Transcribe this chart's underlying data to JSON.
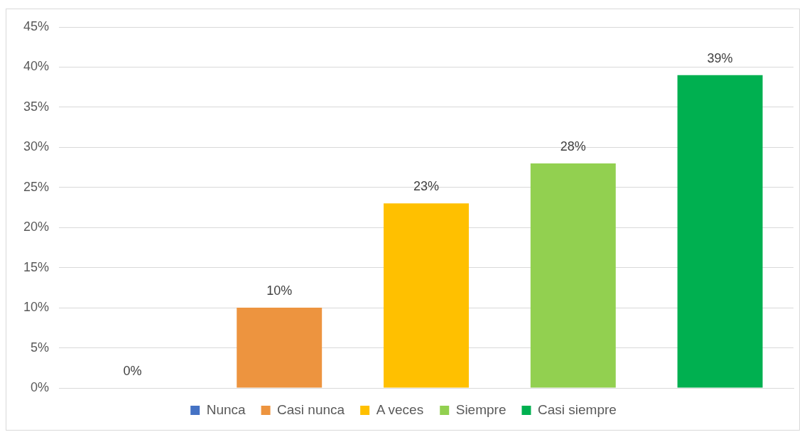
{
  "chart_data": {
    "type": "bar",
    "categories": [
      null,
      null,
      null,
      null,
      null
    ],
    "series": [
      {
        "name": "Nunca",
        "color": "#4472c4",
        "values": [
          0,
          null,
          null,
          null,
          null
        ],
        "value_labels": [
          "0%",
          null,
          null,
          null,
          null
        ]
      },
      {
        "name": "Casi nunca",
        "color": "#ed943f",
        "values": [
          null,
          10,
          null,
          null,
          null
        ],
        "value_labels": [
          null,
          "10%",
          null,
          null,
          null
        ]
      },
      {
        "name": "A veces",
        "color": "#ffc000",
        "values": [
          null,
          null,
          23,
          null,
          null
        ],
        "value_labels": [
          null,
          null,
          "23%",
          null,
          null
        ]
      },
      {
        "name": "Siempre",
        "color": "#92d050",
        "values": [
          null,
          null,
          null,
          28,
          null
        ],
        "value_labels": [
          null,
          null,
          null,
          "28%",
          null
        ]
      },
      {
        "name": "Casi siempre",
        "color": "#00b050",
        "values": [
          null,
          null,
          null,
          null,
          39
        ],
        "value_labels": [
          null,
          null,
          null,
          null,
          "39%"
        ]
      }
    ],
    "ylim": [
      0,
      45
    ],
    "yticks": [
      {
        "value": 0,
        "label": "0%"
      },
      {
        "value": 5,
        "label": "5%"
      },
      {
        "value": 10,
        "label": "10%"
      },
      {
        "value": 15,
        "label": "15%"
      },
      {
        "value": 20,
        "label": "20%"
      },
      {
        "value": 25,
        "label": "25%"
      },
      {
        "value": 30,
        "label": "30%"
      },
      {
        "value": 35,
        "label": "35%"
      },
      {
        "value": 40,
        "label": "40%"
      },
      {
        "value": 45,
        "label": "45%"
      }
    ],
    "grid": "y",
    "legend": "bottom",
    "tick_labels": "y"
  }
}
